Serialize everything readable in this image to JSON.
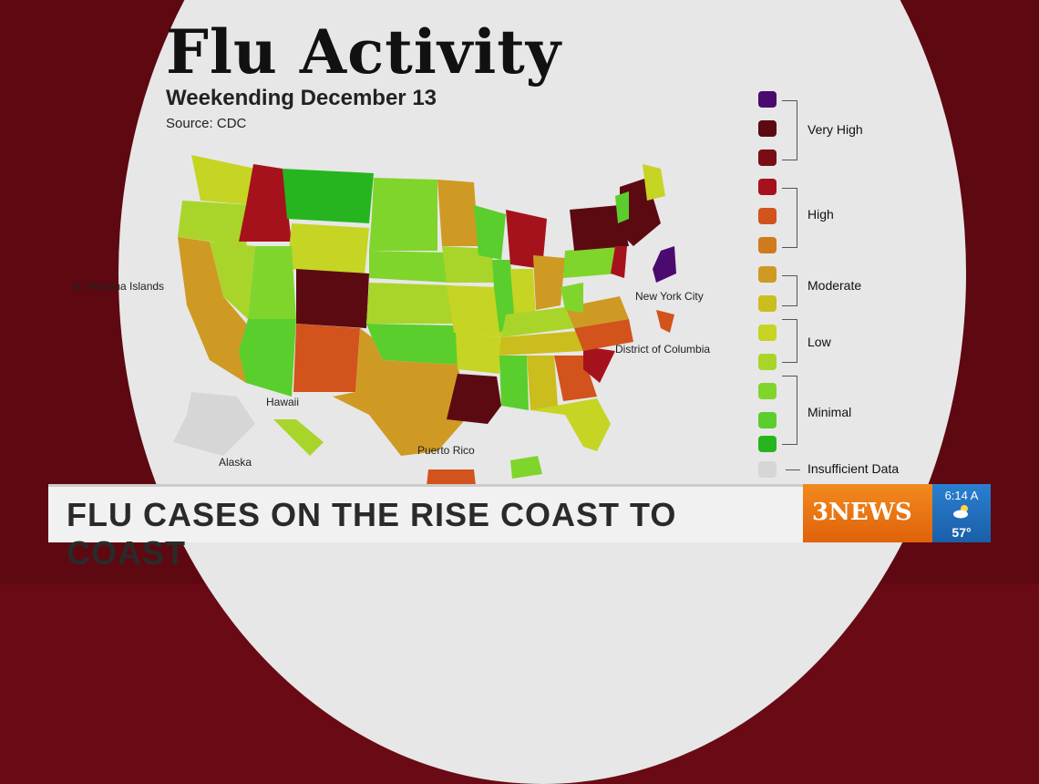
{
  "title": "Flu Activity",
  "subtitle": "Weekending December 13",
  "source": "Source: CDC",
  "map_labels": {
    "n_mariana": "N. Mariana Islands",
    "nyc": "New York City",
    "dc": "District of Columbia",
    "hawaii": "Hawaii",
    "alaska": "Alaska",
    "puerto_rico": "Puerto Rico"
  },
  "legend": {
    "very_high": "Very High",
    "high": "High",
    "moderate": "Moderate",
    "low": "Low",
    "minimal": "Minimal",
    "insufficient": "Insufficient Data"
  },
  "legend_colors": [
    "#4b0a6e",
    "#5c0a12",
    "#7a0c16",
    "#a6121b",
    "#d2531b",
    "#cf7a1d",
    "#cf9a23",
    "#cbbd1e",
    "#c6d424",
    "#a9d52a",
    "#7fd52c",
    "#5ace2c",
    "#26b51e",
    "#d6d6d6"
  ],
  "headline": "FLU CASES ON THE RISE COAST TO COAST",
  "brand": "3NEWS",
  "weather": {
    "time": "6:14 A",
    "temp": "57°",
    "icon": "cloud-sun-icon"
  }
}
